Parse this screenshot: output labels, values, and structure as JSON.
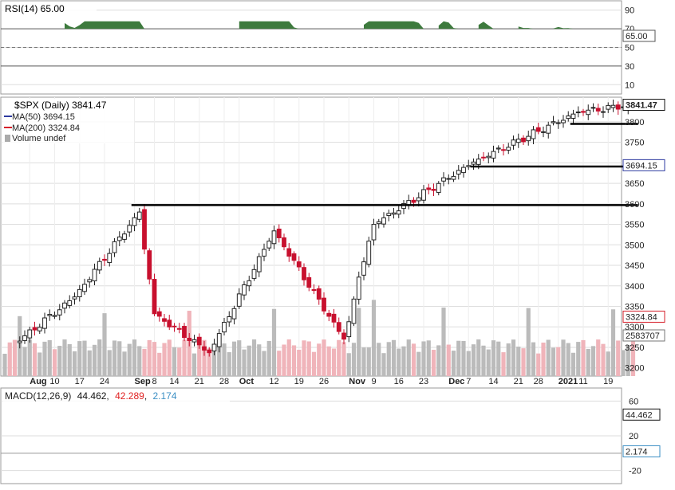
{
  "colors": {
    "up": "#ffffff",
    "down": "#c8102e",
    "ma50": "#2d3aa0",
    "ma200": "#d61f2a",
    "rsi_line": "#333333",
    "rsi_fill": "#3d7a3d",
    "macd_line": "#111111",
    "signal_line": "#e02020",
    "histogram": "#3b8fc4",
    "volume_up": "#bbbbbb",
    "volume_down": "#f0b4ba",
    "grid": "#dddddd",
    "resistance": "#000000"
  },
  "rsi_panel": {
    "legend": "RSI(14) 65.00",
    "value_tag": "65.00",
    "ticks": [
      "90",
      "70",
      "50",
      "30",
      "10"
    ]
  },
  "price_panel": {
    "legend": {
      "symbol": "$SPX (Daily) 3841.47",
      "ma50": "MA(50) 3694.15",
      "ma200": "MA(200) 3324.84",
      "volume": "Volume undef"
    },
    "tags": {
      "price": "3841.47",
      "ma50": "3694.15",
      "ma200": "3324.84",
      "volume": "2583707"
    },
    "ticks": [
      "3800",
      "3750",
      "3700",
      "3650",
      "3600",
      "3550",
      "3500",
      "3450",
      "3400",
      "3350",
      "3300",
      "3250",
      "3200"
    ],
    "date_labels": [
      "Aug",
      "10",
      "17",
      "24",
      "Sep",
      "8",
      "14",
      "21",
      "28",
      "Oct",
      "12",
      "19",
      "26",
      "Nov",
      "9",
      "16",
      "23",
      "Dec",
      "7",
      "14",
      "21",
      "28",
      "2021",
      "11",
      "19"
    ]
  },
  "macd_panel": {
    "legend": {
      "name": "MACD(12,26,9)",
      "macd": "44.462",
      "signal": "42.289",
      "histogram": "2.174"
    },
    "tags": {
      "macd": "44.462",
      "histogram": "2.174"
    },
    "ticks": [
      "60",
      "20",
      "-20"
    ]
  },
  "chart_data": {
    "type": "candlestick",
    "symbol": "$SPX",
    "price_ylim": [
      3180,
      3860
    ],
    "resistance_levels": [
      {
        "level": 3597,
        "from": "2020-09-02",
        "to": "2021-01-26"
      },
      {
        "level": 3691,
        "from": "2020-12-09",
        "to": "2021-01-26"
      },
      {
        "level": 3795,
        "from": "2021-01-08",
        "to": "2021-01-26"
      }
    ],
    "key_closes": [
      {
        "date": "2020-07-29",
        "close": 3258
      },
      {
        "date": "2020-08-14",
        "close": 3373
      },
      {
        "date": "2020-09-02",
        "close": 3580
      },
      {
        "date": "2020-09-08",
        "close": 3332
      },
      {
        "date": "2020-09-23",
        "close": 3237
      },
      {
        "date": "2020-10-12",
        "close": 3534
      },
      {
        "date": "2020-10-30",
        "close": 3270
      },
      {
        "date": "2020-11-06",
        "close": 3509
      },
      {
        "date": "2020-11-09",
        "close": 3550
      },
      {
        "date": "2020-12-08",
        "close": 3702
      },
      {
        "date": "2021-01-08",
        "close": 3824
      },
      {
        "date": "2021-01-26",
        "close": 3841.47
      }
    ],
    "ma50_last": 3694.15,
    "ma200_last": 3324.84,
    "rsi": {
      "period": 14,
      "last": 65.0,
      "ylim": [
        0,
        100
      ]
    },
    "macd": {
      "fast": 12,
      "slow": 26,
      "signal": 9,
      "macd_last": 44.462,
      "signal_last": 42.289,
      "histogram_last": 2.174
    }
  }
}
